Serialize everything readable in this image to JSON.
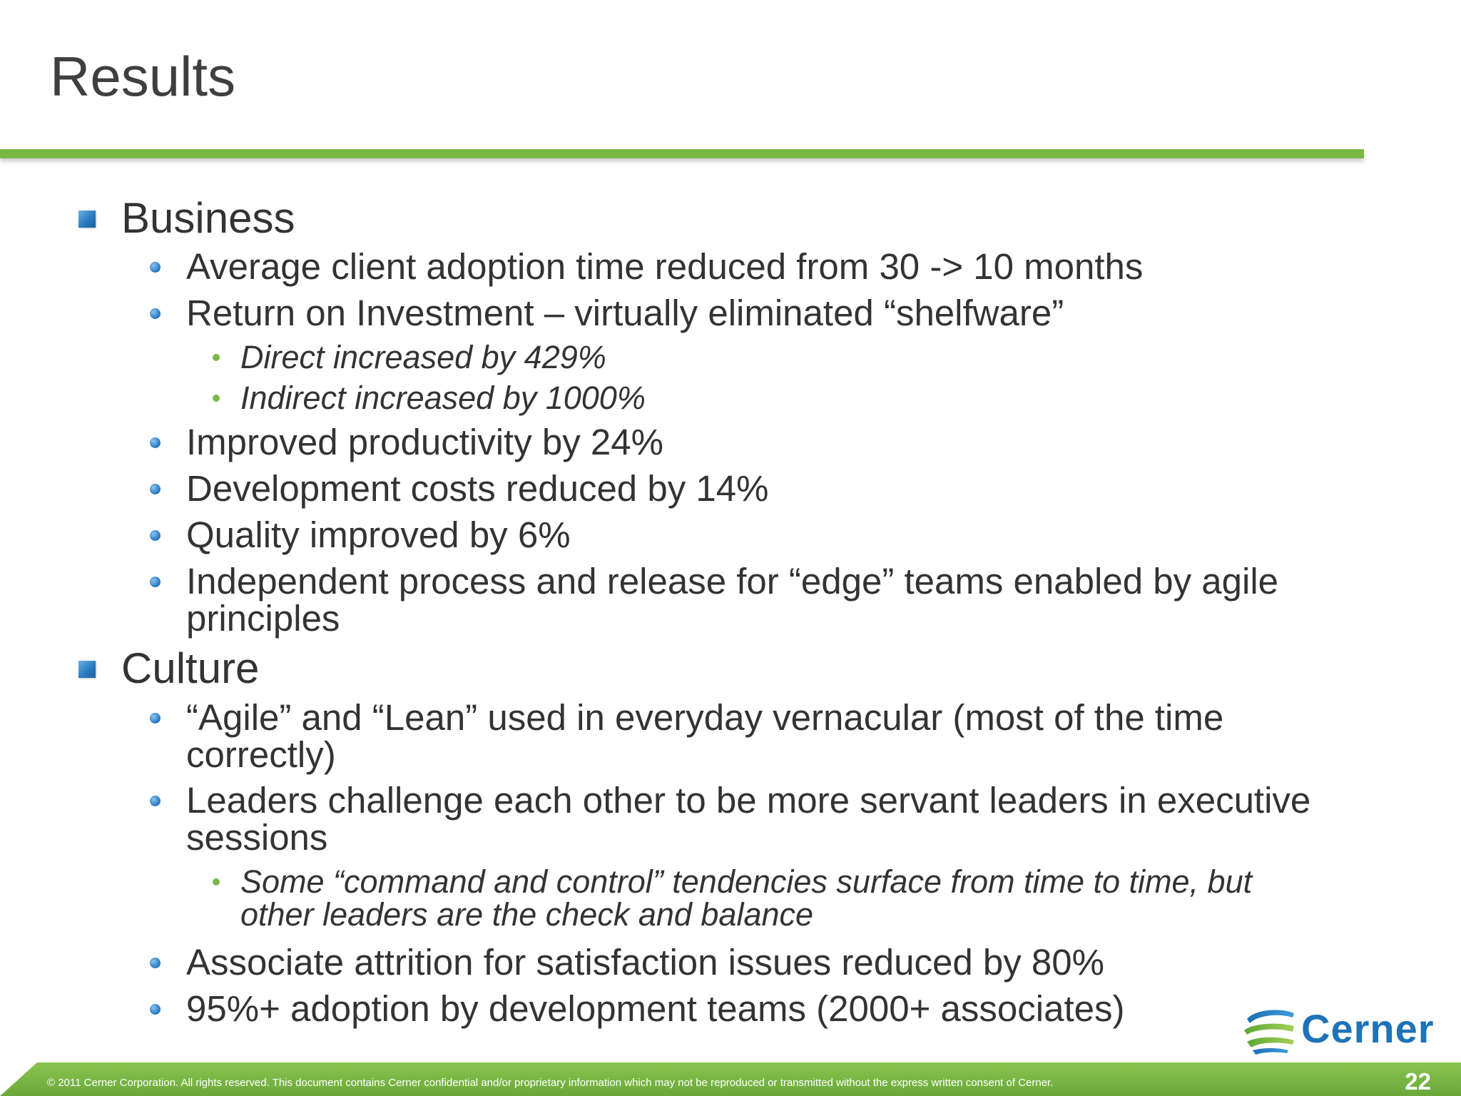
{
  "slide": {
    "title": "Results",
    "sections": [
      {
        "heading": "Business",
        "bullets": [
          "Average client adoption time reduced from 30 -> 10 months",
          "Return on Investment – virtually eliminated “shelfware”",
          "Improved productivity by 24%",
          "Development costs reduced by 14%",
          "Quality improved by 6%",
          "Independent process and release for “edge” teams enabled by agile",
          "principles"
        ],
        "sub_bullets": [
          "Direct increased by 429%",
          "Indirect increased by 1000%"
        ]
      },
      {
        "heading": "Culture",
        "bullets": [
          "“Agile” and “Lean” used in everyday vernacular (most of the time",
          "correctly)",
          "Leaders challenge each other to be more servant leaders in executive",
          "sessions",
          "Associate attrition for satisfaction issues reduced by 80%",
          "95%+ adoption by development teams (2000+ associates)"
        ],
        "sub_bullets": [
          "Some “command and control” tendencies surface from time to time, but",
          "other leaders are the check and balance"
        ]
      }
    ]
  },
  "logo": {
    "text": "Cerner"
  },
  "footer": {
    "copyright": "© 2011 Cerner Corporation. All rights reserved. This document contains Cerner confidential and/or proprietary information which may  not be reproduced or transmitted without the express written consent of Cerner.",
    "page_number": "22"
  },
  "colors": {
    "accent_green": "#78b843",
    "bullet_blue": "#2a7cc2",
    "text_dark": "#333333",
    "logo_blue": "#1e73b8"
  }
}
